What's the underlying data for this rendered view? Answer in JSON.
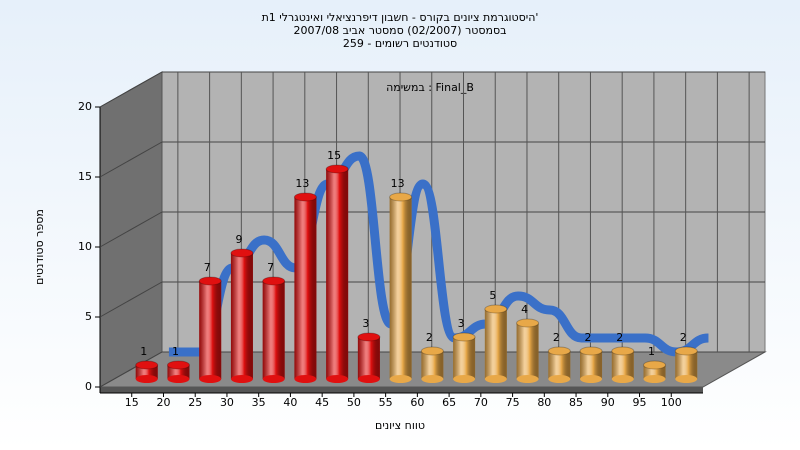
{
  "chart_data": {
    "type": "bar",
    "title": [
      "היסטוגרמת ציונים בקורס - חשבון דיפרנציאלי ואינטגרלי 1ת'",
      "בסמסטר  (02/2007)  סמסטר אביב 2007/08",
      "סטודנטים רשומים - 259"
    ],
    "subtitle": "במשימה : Final_B",
    "x_label": "טווח ציונים",
    "y_label": "מספר סטודנטים",
    "categories": [
      "15",
      "20",
      "25",
      "30",
      "35",
      "40",
      "45",
      "50",
      "55",
      "60",
      "65",
      "70",
      "75",
      "80",
      "85",
      "90",
      "95",
      "100"
    ],
    "values": [
      1,
      1,
      7,
      9,
      7,
      13,
      15,
      3,
      13,
      2,
      3,
      5,
      4,
      2,
      2,
      2,
      1,
      2
    ],
    "colors": [
      "#e01010",
      "#e01010",
      "#e01010",
      "#e01010",
      "#e01010",
      "#e01010",
      "#e01010",
      "#e01010",
      "#e8a848",
      "#e8a848",
      "#e8a848",
      "#e8a848",
      "#e8a848",
      "#e8a848",
      "#e8a848",
      "#e8a848",
      "#e8a848",
      "#e8a848"
    ],
    "trend_color": "#3a70c8",
    "ylim": [
      0,
      20
    ],
    "yticks": [
      0,
      5,
      10,
      15,
      20
    ],
    "grid": true
  }
}
